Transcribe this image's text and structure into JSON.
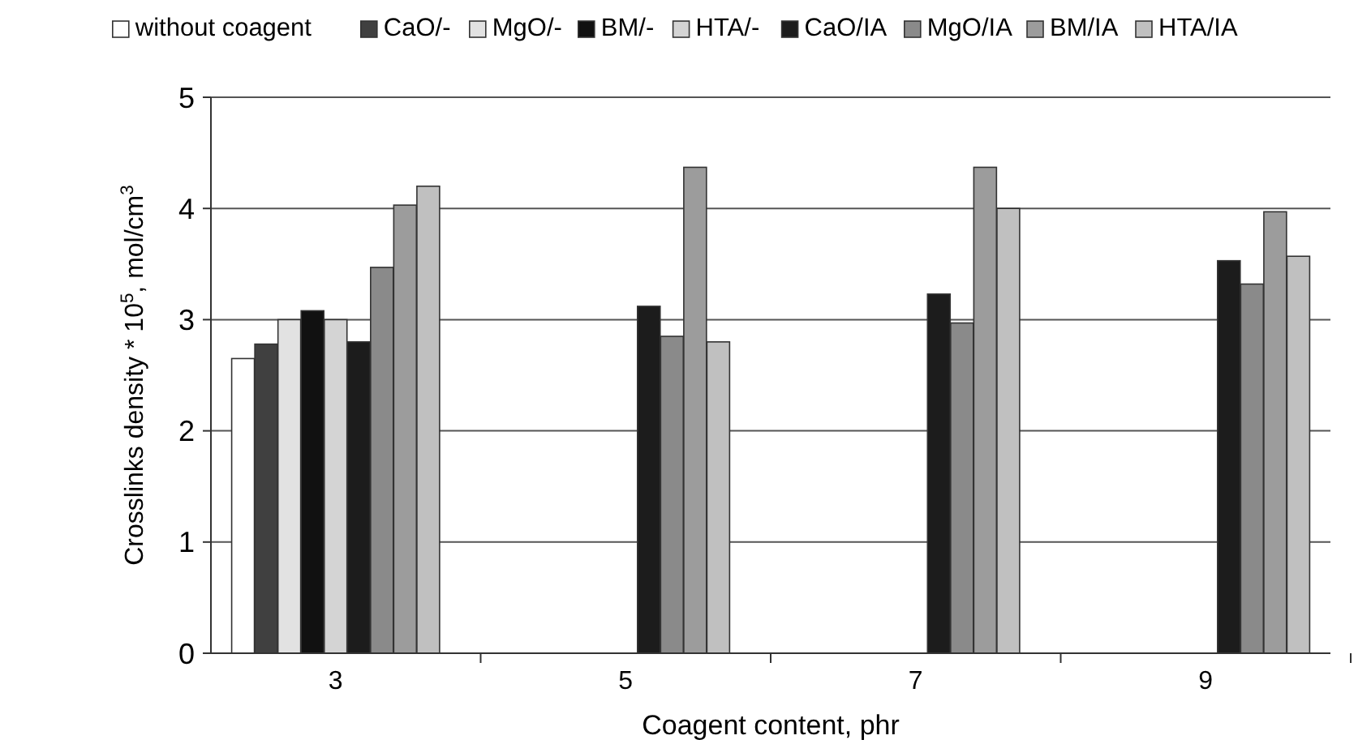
{
  "chart_data": {
    "type": "bar",
    "xlabel": "Coagent content, phr",
    "ylabel": "Crosslinks density * 10$^{5}$, mol/cm$^{3}$",
    "categories": [
      "3",
      "5",
      "7",
      "9"
    ],
    "ylim": [
      0,
      5
    ],
    "yticks": [
      0,
      1,
      2,
      3,
      4,
      5
    ],
    "grid": "y",
    "legend": "top",
    "series": [
      {
        "name": "without coagent",
        "color": "#ffffff",
        "values": [
          2.65,
          null,
          null,
          null
        ]
      },
      {
        "name": "CaO/-",
        "color": "#404040",
        "values": [
          2.78,
          null,
          null,
          null
        ]
      },
      {
        "name": "MgO/-",
        "color": "#e2e2e2",
        "values": [
          3.0,
          null,
          null,
          null
        ]
      },
      {
        "name": "BM/-",
        "color": "#111111",
        "values": [
          3.08,
          null,
          null,
          null
        ]
      },
      {
        "name": "HTA/-",
        "color": "#d4d4d4",
        "values": [
          3.0,
          null,
          null,
          null
        ]
      },
      {
        "name": "CaO/IA",
        "color": "#1c1c1c",
        "values": [
          2.8,
          3.12,
          3.23,
          3.53
        ]
      },
      {
        "name": "MgO/IA",
        "color": "#8a8a8a",
        "values": [
          3.47,
          2.85,
          2.97,
          3.32
        ]
      },
      {
        "name": "BM/IA",
        "color": "#9c9c9c",
        "values": [
          4.03,
          4.37,
          4.37,
          3.97
        ]
      },
      {
        "name": "HTA/IA",
        "color": "#c0c0c0",
        "values": [
          4.2,
          2.8,
          4.0,
          3.57
        ]
      }
    ]
  }
}
